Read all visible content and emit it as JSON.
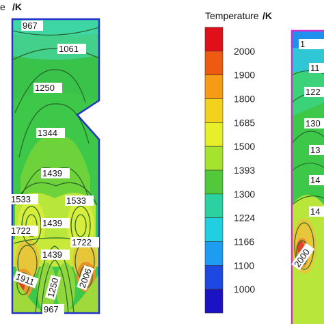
{
  "left_header": {
    "partial_word": "e",
    "unit": "/K"
  },
  "legend": {
    "title": "Temperature",
    "unit": "/K",
    "ticks": [
      "2000",
      "1900",
      "1800",
      "1685",
      "1500",
      "1393",
      "1300",
      "1224",
      "1166",
      "1100",
      "1000"
    ],
    "colors": [
      "#e0101a",
      "#ee5a12",
      "#f59b15",
      "#f2d21c",
      "#e6ef2a",
      "#a6e32e",
      "#52c93a",
      "#2bd1a0",
      "#20cfe0",
      "#1e9cf2",
      "#1f47e2",
      "#1b12c4"
    ]
  },
  "left_contours": {
    "labels": [
      "967",
      "1061",
      "1250",
      "1344",
      "1439",
      "1533",
      "1533",
      "1439",
      "1722",
      "1722",
      "1439",
      "1911",
      "1250",
      "2006",
      "967"
    ]
  },
  "right_contours": {
    "labels": [
      "1",
      "11",
      "122",
      "130",
      "13",
      "14",
      "14",
      "2000"
    ]
  }
}
